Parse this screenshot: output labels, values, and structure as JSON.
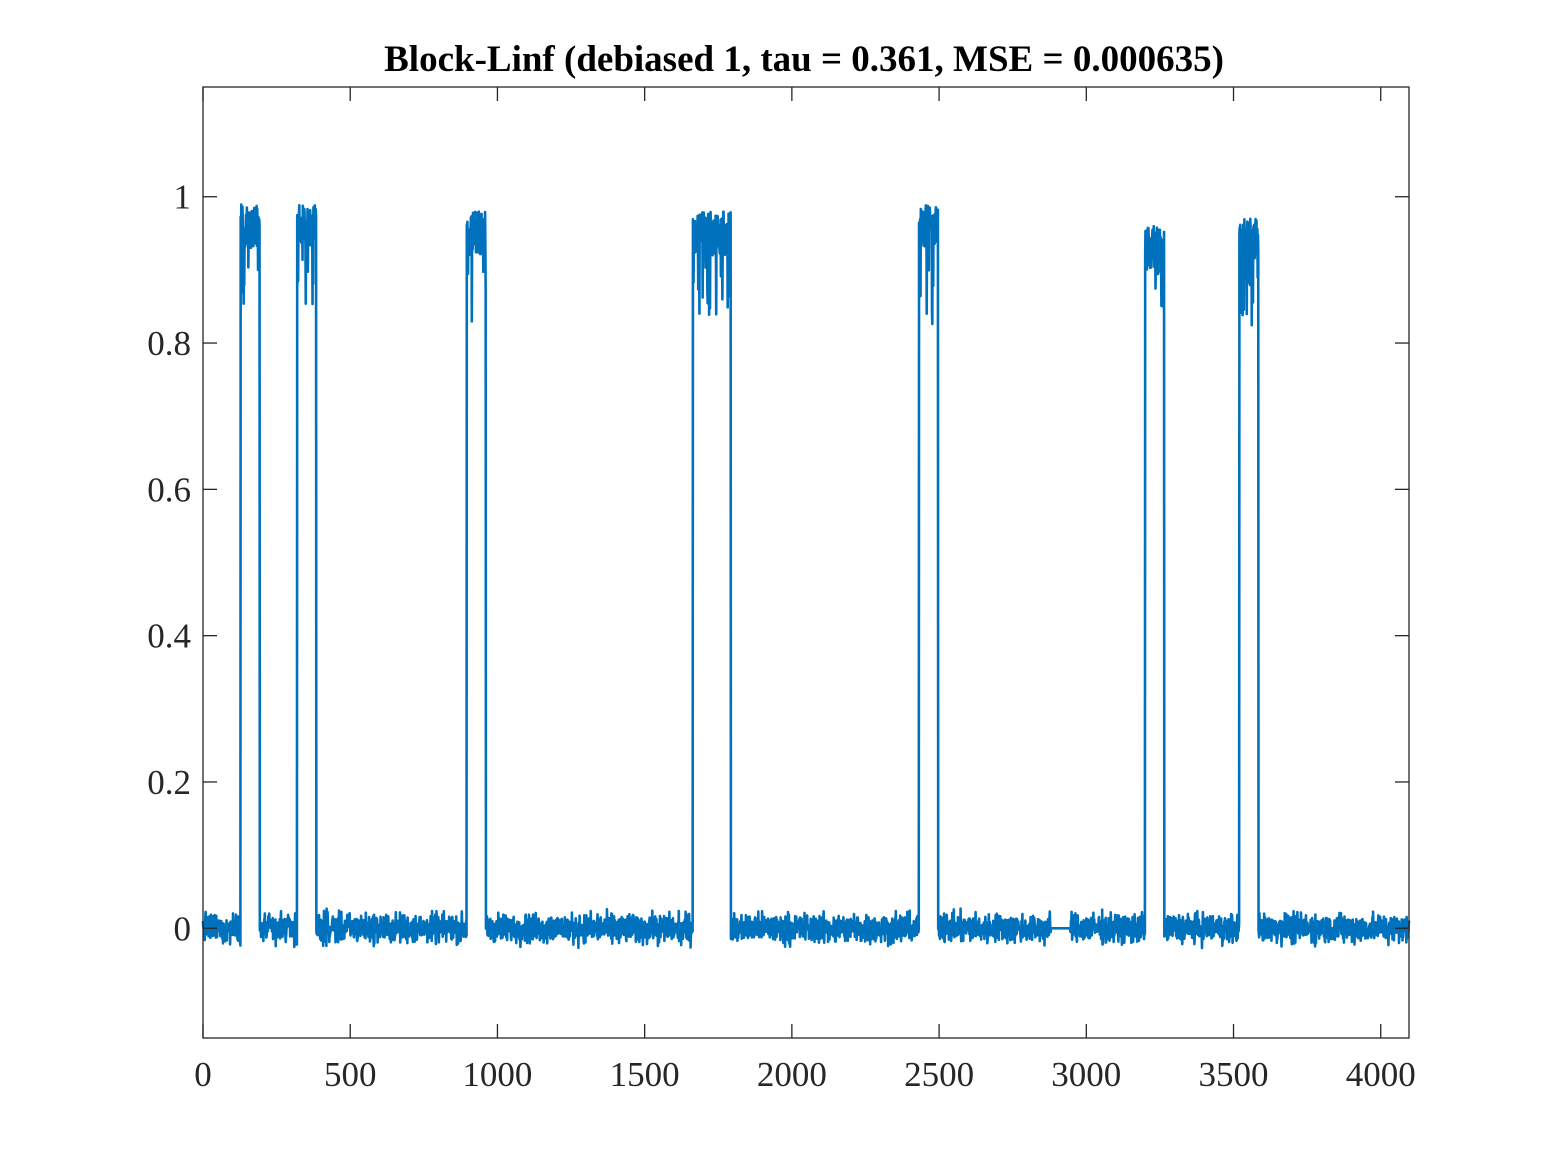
{
  "chart_data": {
    "type": "line",
    "title": "Block-Linf (debiased 1, tau = 0.361, MSE = 0.000635)",
    "xlabel": "",
    "ylabel": "",
    "xlim": [
      0,
      4096
    ],
    "ylim": [
      -0.15,
      1.15
    ],
    "xticks": [
      0,
      500,
      1000,
      1500,
      2000,
      2500,
      3000,
      3500,
      4000
    ],
    "xtick_labels": [
      "0",
      "500",
      "1000",
      "1500",
      "2000",
      "2500",
      "3000",
      "3500",
      "4000"
    ],
    "yticks": [
      0,
      0.2,
      0.4,
      0.6,
      0.8,
      1
    ],
    "ytick_labels": [
      "0",
      "0.2",
      "0.4",
      "0.6",
      "0.8",
      "1"
    ],
    "grid": false,
    "box": true,
    "series": [
      {
        "color": "#0072BD",
        "baseline_level": 0,
        "baseline_noise_range": [
          -0.04,
          0.05
        ],
        "flat_segment": {
          "x": [
            2880,
            2945
          ],
          "y": 0
        },
        "pulses": [
          {
            "x_start": 128,
            "x_end": 192,
            "level_range": [
              0.85,
              0.99
            ]
          },
          {
            "x_start": 320,
            "x_end": 384,
            "level_range": [
              0.84,
              0.99
            ]
          },
          {
            "x_start": 896,
            "x_end": 960,
            "level_range": [
              0.82,
              0.98
            ]
          },
          {
            "x_start": 1664,
            "x_end": 1792,
            "level_range": [
              0.83,
              0.98
            ]
          },
          {
            "x_start": 2432,
            "x_end": 2496,
            "level_range": [
              0.82,
              0.99
            ]
          },
          {
            "x_start": 3200,
            "x_end": 3264,
            "level_range": [
              0.85,
              0.96
            ]
          },
          {
            "x_start": 3520,
            "x_end": 3584,
            "level_range": [
              0.82,
              0.97
            ]
          }
        ]
      }
    ]
  }
}
